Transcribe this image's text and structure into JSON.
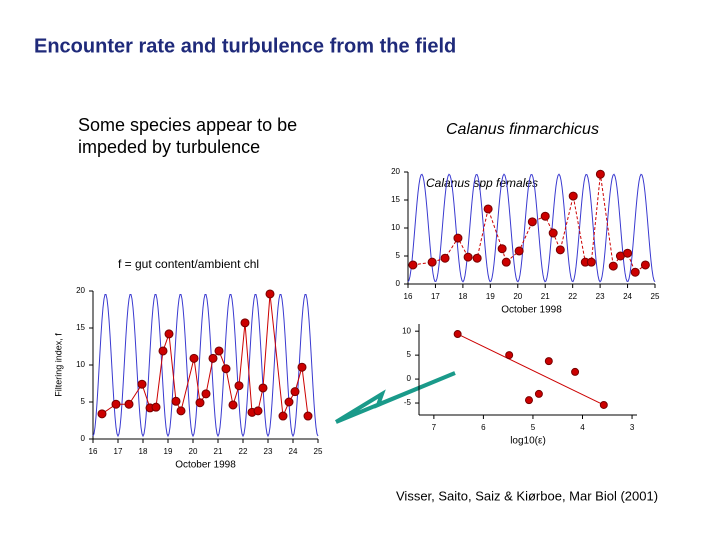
{
  "title": "Encounter rate and turbulence from the field",
  "note_left": "Some species appear to be impeded by turbulence",
  "note_right": "Calanus finmarchicus",
  "definition": "f = gut content/ambient chl",
  "citation": "Visser, Saito, Saiz & Kiørboe, Mar Biol (2001)",
  "chart_data": [
    {
      "type": "line",
      "ylabel": "Filtering index, f",
      "xlabel": "October 1998",
      "x": [
        16.36,
        16.92,
        17.44,
        17.96,
        18.28,
        18.52,
        18.8,
        19.04,
        19.32,
        19.52,
        20.04,
        20.28,
        20.52,
        20.8,
        21.04,
        21.32,
        21.6,
        21.84,
        22.08,
        22.36,
        22.6,
        22.8,
        23.08,
        23.6,
        23.84,
        24.08,
        24.36,
        24.6
      ],
      "series": [
        {
          "color": "#cc0000",
          "values": [
            3.4,
            4.7,
            4.7,
            7.4,
            4.2,
            4.3,
            11.9,
            14.2,
            5.1,
            3.8,
            10.9,
            4.9,
            6.1,
            10.9,
            11.9,
            9.5,
            4.6,
            7.2,
            15.7,
            3.6,
            3.8,
            6.9,
            19.6,
            3.1,
            5.0,
            6.4,
            9.7,
            3.1
          ]
        }
      ],
      "xlim": [
        16,
        25
      ],
      "xticks": [
        16,
        17,
        18,
        19,
        20,
        21,
        22,
        23,
        24,
        25
      ],
      "ylim": [
        0,
        20
      ],
      "yticks": [
        0,
        5,
        10,
        15,
        20
      ],
      "wave_color": "#3a3ad0"
    },
    {
      "type": "line",
      "title": "Calanus spp females",
      "xlabel": "October 1998",
      "x": [
        16.18,
        16.88,
        17.35,
        17.82,
        18.19,
        18.52,
        18.92,
        19.43,
        19.58,
        20.05,
        20.53,
        21.0,
        21.29,
        21.55,
        22.02,
        22.46,
        22.68,
        23.01,
        23.48,
        23.74,
        24.0,
        24.28,
        24.65
      ],
      "series": [
        {
          "color": "#cc0000",
          "values": [
            3.4,
            3.9,
            4.6,
            8.2,
            4.8,
            4.6,
            13.4,
            6.3,
            3.9,
            5.9,
            11.1,
            12.1,
            9.1,
            6.1,
            15.7,
            3.9,
            3.9,
            19.6,
            3.2,
            5.0,
            5.5,
            2.1,
            3.4
          ]
        }
      ],
      "xlim": [
        16,
        25
      ],
      "xticks": [
        16,
        17,
        18,
        19,
        20,
        21,
        22,
        23,
        24,
        25
      ],
      "ylim": [
        0,
        20
      ],
      "yticks": [
        0,
        5,
        10,
        15,
        20
      ],
      "wave_color": "#3a3ad0"
    },
    {
      "type": "scatter",
      "xlabel": "log10(ε)",
      "x": [
        6.52,
        5.48,
        4.68,
        4.15,
        4.88,
        5.08,
        3.57
      ],
      "values": [
        9.4,
        5.0,
        3.75,
        1.5,
        -3.1,
        -4.4,
        -5.4
      ],
      "color": "#cc0000",
      "fit": {
        "x": [
          6.52,
          3.57
        ],
        "y": [
          9.4,
          -5.4
        ],
        "color": "#cc0000"
      },
      "xlim": [
        7.3,
        2.9
      ],
      "xticks": [
        7,
        6,
        5,
        4,
        3
      ],
      "ylim": [
        -7.5,
        11.5
      ],
      "yticks": [
        10,
        5,
        0,
        -5
      ]
    }
  ]
}
